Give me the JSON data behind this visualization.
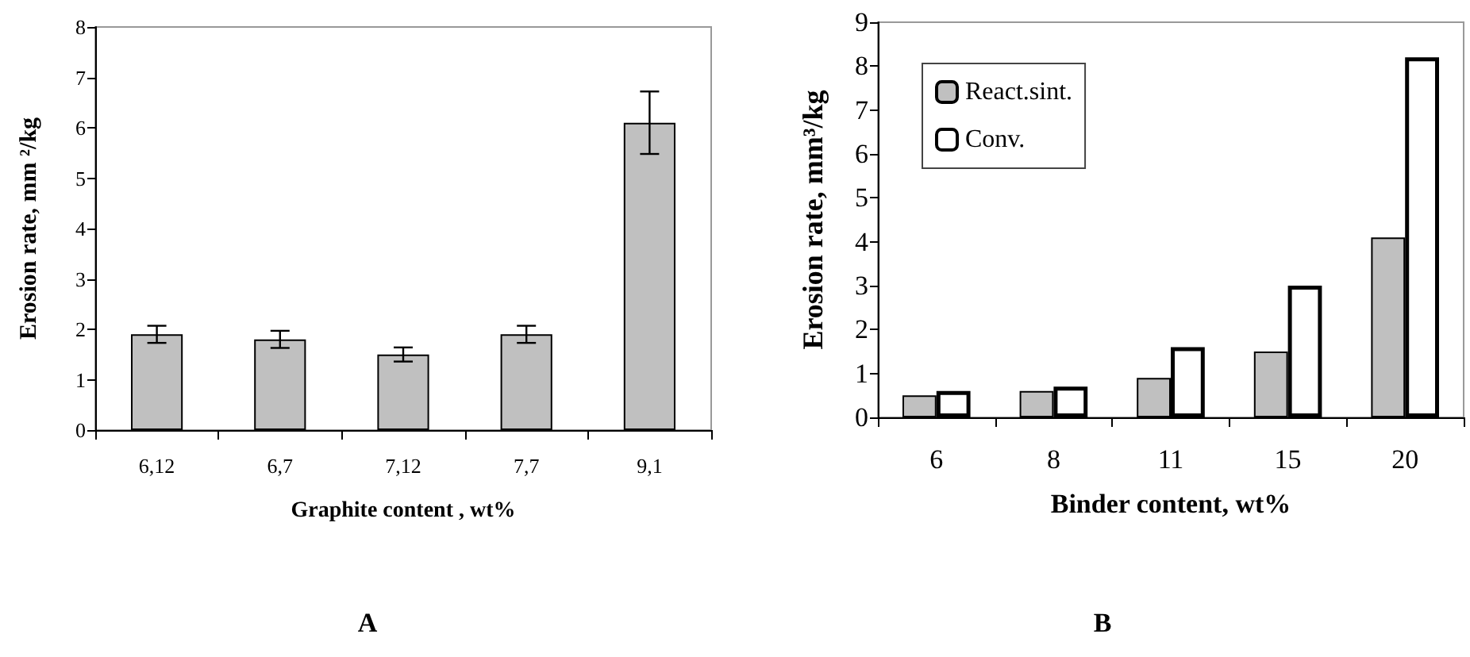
{
  "chart_data": [
    {
      "type": "bar",
      "title": "A",
      "xlabel": "Graphite content , wt%",
      "ylabel": "Erosion rate, mm ²/kg",
      "categories": [
        "6,12",
        "6,7",
        "7,12",
        "7,7",
        "9,1"
      ],
      "series": [
        {
          "color": "#c0c0c0",
          "values": [
            1.9,
            1.8,
            1.5,
            1.9,
            6.1
          ],
          "errors": [
            0.17,
            0.17,
            0.14,
            0.17,
            0.62
          ]
        }
      ],
      "ylim": [
        0,
        8
      ],
      "yticks": [
        0,
        1,
        2,
        3,
        4,
        5,
        6,
        7,
        8
      ],
      "grid": false,
      "legend": false
    },
    {
      "type": "bar",
      "title": "B",
      "xlabel": "Binder content, wt%",
      "ylabel": "Erosion rate, mm³/kg",
      "categories": [
        "6",
        "8",
        "11",
        "15",
        "20"
      ],
      "series": [
        {
          "name": "React.sint.",
          "color": "#c0c0c0",
          "values": [
            0.5,
            0.6,
            0.9,
            1.5,
            4.1
          ]
        },
        {
          "name": "Conv.",
          "color": "#ffffff",
          "values": [
            0.6,
            0.7,
            1.6,
            3.0,
            8.2
          ]
        }
      ],
      "ylim": [
        0,
        9
      ],
      "yticks": [
        0,
        1,
        2,
        3,
        4,
        5,
        6,
        7,
        8,
        9
      ],
      "grid": false,
      "legend": "top left"
    }
  ]
}
